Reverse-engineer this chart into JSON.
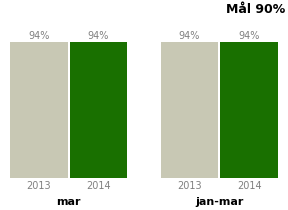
{
  "groups": [
    "mar",
    "jan-mar"
  ],
  "years": [
    "2013",
    "2014"
  ],
  "values": [
    [
      94,
      94
    ],
    [
      94,
      94
    ]
  ],
  "bar_colors": [
    "#c8c8b4",
    "#197000"
  ],
  "title": "Mål 90%",
  "ylim": [
    0,
    110
  ],
  "background_color": "#ffffff",
  "label_color": "#808080",
  "value_label_fontsize": 7,
  "year_label_fontsize": 7,
  "group_label_fontsize": 8,
  "title_fontsize": 9,
  "bar_width": 0.38,
  "group_positions": [
    0.42,
    1.38
  ],
  "xlim": [
    0.0,
    1.8
  ]
}
